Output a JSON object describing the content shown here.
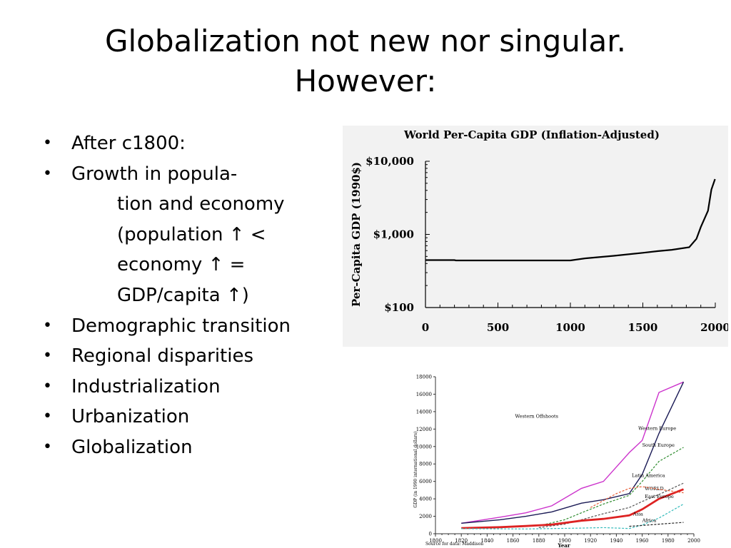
{
  "slide": {
    "title_lines": [
      "Globalization not new nor singular.",
      "However:"
    ],
    "bullets": [
      {
        "text": "After c1800:",
        "indent": 0
      },
      {
        "text": "Growth in popula-",
        "indent": 0
      },
      {
        "text": "tion and economy",
        "indent": 1
      },
      {
        "text": "(population ↑ <",
        "indent": 1
      },
      {
        "text": "economy ↑ =",
        "indent": 1
      },
      {
        "text": "GDP/capita ↑)",
        "indent": 1
      },
      {
        "text": "Demographic transition",
        "indent": 0
      },
      {
        "text": "Regional disparities",
        "indent": 0
      },
      {
        "text": "Industrialization",
        "indent": 0
      },
      {
        "text": "Urbanization",
        "indent": 0
      },
      {
        "text": "Globalization",
        "indent": 0
      }
    ]
  },
  "chart_data": [
    {
      "type": "line",
      "title": "World Per-Capita GDP (Inflation-Adjusted)",
      "xlabel": "",
      "ylabel": "Per-Capita GDP (1990$)",
      "yscale": "log",
      "xlim": [
        0,
        2000
      ],
      "ylim": [
        100,
        10000
      ],
      "xticks": [
        0,
        500,
        1000,
        1500,
        2000
      ],
      "xtick_labels": [
        "0",
        "500",
        "1000",
        "1500",
        "2000"
      ],
      "yticks": [
        100,
        1000,
        10000
      ],
      "ytick_labels": [
        "$100",
        "$1,000",
        "$10,000"
      ],
      "background": "#f2f2f2",
      "series": [
        {
          "color": "#000000",
          "points": [
            [
              0,
              445
            ],
            [
              200,
              445
            ],
            [
              210,
              440
            ],
            [
              600,
              440
            ],
            [
              1000,
              440
            ],
            [
              1100,
              470
            ],
            [
              1300,
              510
            ],
            [
              1500,
              560
            ],
            [
              1600,
              590
            ],
            [
              1700,
              615
            ],
            [
              1820,
              667
            ],
            [
              1870,
              870
            ],
            [
              1900,
              1260
            ],
            [
              1950,
              2110
            ],
            [
              1973,
              4090
            ],
            [
              1998,
              5700
            ]
          ]
        }
      ]
    },
    {
      "type": "line",
      "title": "",
      "xlabel": "Year",
      "ylabel": "GDP (in 1990 international dollars)",
      "source": "Source for data: Maddison",
      "xlim": [
        1800,
        2000
      ],
      "ylim": [
        0,
        18000
      ],
      "xticks": [
        1800,
        1820,
        1840,
        1860,
        1880,
        1900,
        1920,
        1940,
        1960,
        1980,
        2000
      ],
      "xtick_labels": [
        "1800",
        "1820",
        "1840",
        "1860",
        "1880",
        "1900",
        "1920",
        "1940",
        "1960",
        "1980",
        "2000"
      ],
      "yticks": [
        0,
        2000,
        4000,
        6000,
        8000,
        10000,
        12000,
        14000,
        16000,
        18000
      ],
      "ytick_labels": [
        "0",
        "2000",
        "4000",
        "6000",
        "8000",
        "10000",
        "12000",
        "14000",
        "16000",
        "18000"
      ],
      "series": [
        {
          "name": "Western Offshoots",
          "color": "#cc33cc",
          "dash": "solid",
          "width": 1.4,
          "points": [
            [
              1820,
              1200
            ],
            [
              1850,
              1900
            ],
            [
              1870,
              2400
            ],
            [
              1890,
              3200
            ],
            [
              1913,
              5200
            ],
            [
              1930,
              6000
            ],
            [
              1950,
              9300
            ],
            [
              1960,
              10700
            ],
            [
              1973,
              16200
            ],
            [
              1992,
              17400
            ]
          ]
        },
        {
          "name": "Western Europe",
          "color": "#1a1a55",
          "dash": "solid",
          "width": 1.4,
          "points": [
            [
              1820,
              1200
            ],
            [
              1850,
              1600
            ],
            [
              1870,
              2000
            ],
            [
              1890,
              2500
            ],
            [
              1913,
              3500
            ],
            [
              1930,
              3900
            ],
            [
              1950,
              4600
            ],
            [
              1960,
              6800
            ],
            [
              1973,
              11500
            ],
            [
              1992,
              17400
            ]
          ]
        },
        {
          "name": "South Europe",
          "color": "#2e8b2e",
          "dash": "dashed",
          "width": 1.2,
          "points": [
            [
              1880,
              900
            ],
            [
              1900,
              1600
            ],
            [
              1913,
              2400
            ],
            [
              1930,
              3400
            ],
            [
              1950,
              4400
            ],
            [
              1960,
              6000
            ],
            [
              1973,
              8300
            ],
            [
              1992,
              9900
            ]
          ]
        },
        {
          "name": "Latin America",
          "color": "#555555",
          "dash": "dashed",
          "width": 1.2,
          "points": [
            [
              1880,
              700
            ],
            [
              1900,
              1100
            ],
            [
              1913,
              1600
            ],
            [
              1930,
              2300
            ],
            [
              1950,
              3000
            ],
            [
              1960,
              3700
            ],
            [
              1973,
              4500
            ],
            [
              1992,
              5800
            ]
          ]
        },
        {
          "name": "WORLD",
          "color": "#dd2222",
          "dash": "solid",
          "width": 2.8,
          "points": [
            [
              1820,
              650
            ],
            [
              1850,
              750
            ],
            [
              1870,
              880
            ],
            [
              1890,
              1050
            ],
            [
              1913,
              1500
            ],
            [
              1930,
              1700
            ],
            [
              1950,
              2100
            ],
            [
              1960,
              2800
            ],
            [
              1973,
              4000
            ],
            [
              1992,
              5100
            ]
          ]
        },
        {
          "name": "East Europe",
          "color": "#e8603a",
          "dash": "dashed",
          "width": 1.2,
          "points": [
            [
              1920,
              3000
            ],
            [
              1940,
              4600
            ],
            [
              1950,
              5200
            ],
            [
              1960,
              5400
            ],
            [
              1973,
              5100
            ],
            [
              1992,
              4700
            ]
          ]
        },
        {
          "name": "Asia",
          "color": "#33bbbb",
          "dash": "dashed",
          "width": 1.2,
          "points": [
            [
              1820,
              580
            ],
            [
              1870,
              550
            ],
            [
              1913,
              650
            ],
            [
              1930,
              700
            ],
            [
              1950,
              600
            ],
            [
              1960,
              1000
            ],
            [
              1973,
              1800
            ],
            [
              1992,
              3400
            ]
          ]
        },
        {
          "name": "Africa",
          "color": "#222222",
          "dash": "dashed",
          "width": 1.2,
          "points": [
            [
              1950,
              850
            ],
            [
              1960,
              950
            ],
            [
              1973,
              1100
            ],
            [
              1992,
              1300
            ]
          ]
        }
      ]
    }
  ]
}
